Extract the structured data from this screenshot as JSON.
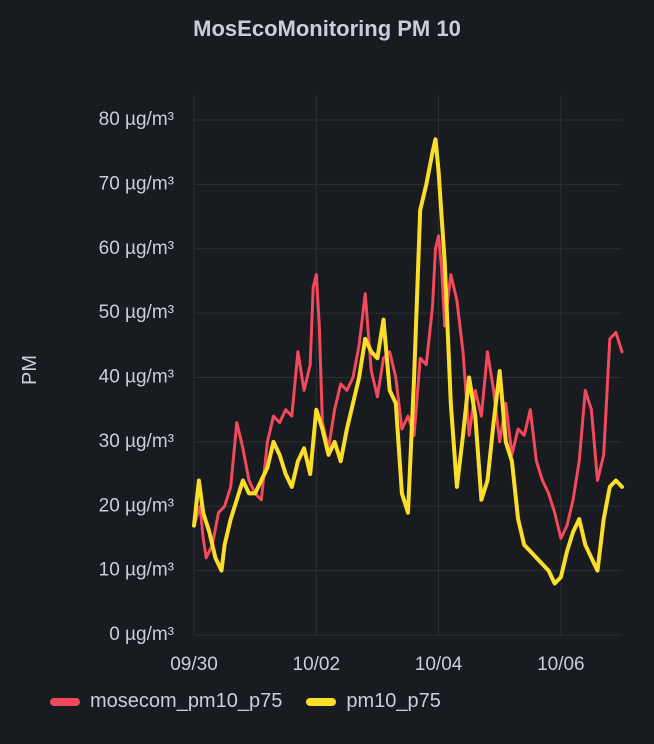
{
  "chart_data": {
    "type": "line",
    "title": "MosEcoMonitoring PM 10",
    "ylabel": "PM",
    "unit": "µg/m³",
    "ylim": [
      0,
      80
    ],
    "y_ticks": [
      "0 µg/m³",
      "10 µg/m³",
      "20 µg/m³",
      "30 µg/m³",
      "40 µg/m³",
      "50 µg/m³",
      "60 µg/m³",
      "70 µg/m³",
      "80 µg/m³"
    ],
    "y_tick_values": [
      0,
      10,
      20,
      30,
      40,
      50,
      60,
      70,
      80
    ],
    "xlim": [
      0,
      7
    ],
    "x_ticks": [
      "09/30",
      "10/02",
      "10/04",
      "10/06"
    ],
    "x_tick_values": [
      0,
      2,
      4,
      6
    ],
    "grid": true,
    "legend_position": "bottom-left",
    "series": [
      {
        "name": "mosecom_pm10_p75",
        "color": "#f2495c",
        "x": [
          0,
          0.1,
          0.15,
          0.2,
          0.3,
          0.4,
          0.5,
          0.6,
          0.7,
          0.75,
          0.8,
          0.9,
          1.0,
          1.1,
          1.2,
          1.3,
          1.4,
          1.5,
          1.6,
          1.7,
          1.8,
          1.9,
          1.95,
          2.0,
          2.05,
          2.1,
          2.2,
          2.3,
          2.4,
          2.5,
          2.6,
          2.7,
          2.8,
          2.9,
          2.95,
          3.0,
          3.1,
          3.2,
          3.3,
          3.4,
          3.5,
          3.6,
          3.7,
          3.8,
          3.9,
          3.95,
          4.0,
          4.05,
          4.1,
          4.2,
          4.3,
          4.4,
          4.5,
          4.6,
          4.7,
          4.8,
          4.9,
          5.0,
          5.1,
          5.2,
          5.3,
          5.4,
          5.5,
          5.6,
          5.7,
          5.8,
          5.9,
          6.0,
          6.1,
          6.2,
          6.3,
          6.4,
          6.5,
          6.6,
          6.7,
          6.8,
          6.9,
          7.0
        ],
        "values": [
          17,
          20,
          15,
          12,
          14,
          19,
          20,
          23,
          33,
          31,
          29,
          24,
          22,
          21,
          30,
          34,
          33,
          35,
          34,
          44,
          38,
          42,
          54,
          56,
          48,
          33,
          29,
          35,
          39,
          38,
          40,
          45,
          53,
          41,
          39,
          37,
          43,
          44,
          40,
          32,
          34,
          31,
          43,
          42,
          51,
          60,
          62,
          57,
          48,
          56,
          52,
          44,
          31,
          38,
          34,
          44,
          38,
          30,
          36,
          28,
          32,
          31,
          35,
          27,
          24,
          22,
          19,
          15,
          17,
          21,
          27,
          38,
          35,
          24,
          28,
          46,
          47,
          44
        ]
      },
      {
        "name": "pm10_p75",
        "color": "#fade2a",
        "x": [
          0,
          0.08,
          0.15,
          0.25,
          0.35,
          0.45,
          0.5,
          0.6,
          0.7,
          0.8,
          0.9,
          1.0,
          1.1,
          1.2,
          1.3,
          1.4,
          1.5,
          1.6,
          1.7,
          1.8,
          1.9,
          2.0,
          2.1,
          2.2,
          2.3,
          2.4,
          2.5,
          2.6,
          2.7,
          2.8,
          2.9,
          3.0,
          3.1,
          3.2,
          3.3,
          3.4,
          3.5,
          3.6,
          3.7,
          3.8,
          3.9,
          3.95,
          4.0,
          4.05,
          4.1,
          4.2,
          4.3,
          4.4,
          4.5,
          4.6,
          4.7,
          4.8,
          4.9,
          5.0,
          5.1,
          5.2,
          5.3,
          5.4,
          5.5,
          5.6,
          5.7,
          5.8,
          5.9,
          6.0,
          6.1,
          6.2,
          6.3,
          6.4,
          6.5,
          6.6,
          6.7,
          6.8,
          6.9,
          7.0
        ],
        "values": [
          17,
          24,
          19,
          16,
          12,
          10,
          14,
          18,
          21,
          24,
          22,
          22,
          24,
          26,
          30,
          28,
          25,
          23,
          27,
          29,
          25,
          35,
          32,
          28,
          30,
          27,
          32,
          36,
          40,
          46,
          44,
          43,
          49,
          38,
          36,
          22,
          19,
          40,
          66,
          70,
          75,
          77,
          72,
          65,
          58,
          36,
          23,
          31,
          40,
          34,
          21,
          24,
          33,
          41,
          30,
          27,
          18,
          14,
          13,
          12,
          11,
          10,
          8,
          9,
          13,
          16,
          18,
          14,
          12,
          10,
          18,
          23,
          24,
          23
        ]
      }
    ]
  }
}
